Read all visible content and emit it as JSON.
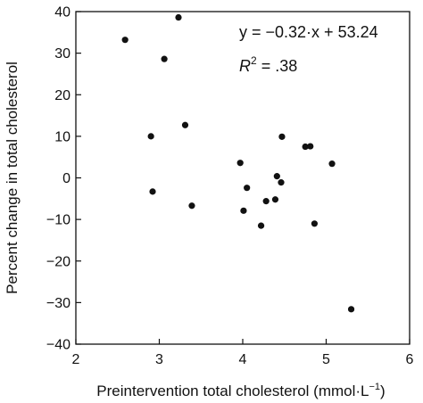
{
  "chart_data": {
    "type": "scatter",
    "xlabel": "Preintervention total cholesterol (mmol·L",
    "xlabel_sup": "−1",
    "xlabel_end": ")",
    "ylabel": "Percent change in total cholesterol",
    "xlim": [
      2,
      6
    ],
    "ylim": [
      -40,
      40
    ],
    "x_ticks": [
      "2",
      "3",
      "4",
      "5",
      "6"
    ],
    "y_ticks": [
      "40",
      "30",
      "20",
      "10",
      "0",
      "−10",
      "−20",
      "−30",
      "−40"
    ],
    "grid": false,
    "points": [
      {
        "x": 2.59,
        "y": 33.2
      },
      {
        "x": 3.06,
        "y": 28.6
      },
      {
        "x": 3.23,
        "y": 38.6
      },
      {
        "x": 2.9,
        "y": 10.0
      },
      {
        "x": 2.92,
        "y": -3.3
      },
      {
        "x": 3.31,
        "y": 12.7
      },
      {
        "x": 3.39,
        "y": -6.7
      },
      {
        "x": 3.97,
        "y": 3.6
      },
      {
        "x": 4.01,
        "y": -7.9
      },
      {
        "x": 4.05,
        "y": -2.4
      },
      {
        "x": 4.22,
        "y": -11.5
      },
      {
        "x": 4.28,
        "y": -5.6
      },
      {
        "x": 4.39,
        "y": -5.2
      },
      {
        "x": 4.41,
        "y": 0.4
      },
      {
        "x": 4.46,
        "y": -1.1
      },
      {
        "x": 4.47,
        "y": 9.9
      },
      {
        "x": 4.75,
        "y": 7.5
      },
      {
        "x": 4.81,
        "y": 7.6
      },
      {
        "x": 4.86,
        "y": -11.0
      },
      {
        "x": 5.07,
        "y": 3.4
      },
      {
        "x": 5.3,
        "y": -31.6
      }
    ],
    "trendline": {
      "slope": -0.32,
      "intercept": 53.24
    },
    "annotation": {
      "equation": "y = −0.32·x + 53.24",
      "r2_prefix": "R",
      "r2_sup": "2",
      "r2_value": " = .38"
    }
  }
}
